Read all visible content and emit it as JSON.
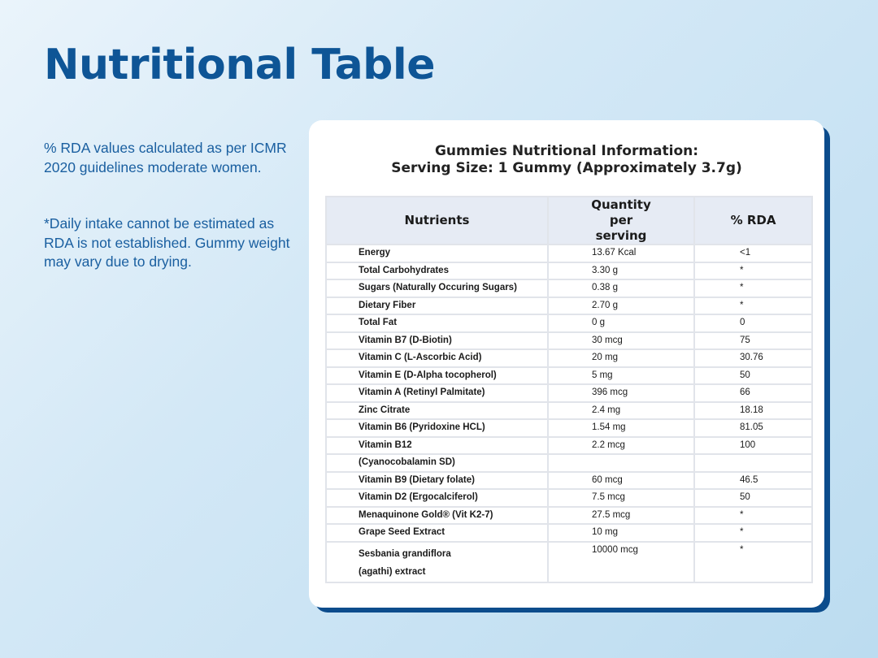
{
  "page": {
    "title": "Nutritional Table",
    "note1": "% RDA values calculated as per ICMR 2020 guidelines moderate women.",
    "note2": "*Daily intake cannot be estimated as RDA is not established. Gummy weight may vary due to drying."
  },
  "card": {
    "title_line1": "Gummies Nutritional Information:",
    "title_line2": "Serving Size: 1 Gummy (Approximately 3.7g)"
  },
  "table": {
    "headers": [
      "Nutrients",
      "Quantity per serving",
      "% RDA"
    ],
    "rows": [
      [
        "Energy",
        "13.67 Kcal",
        "<1"
      ],
      [
        "Total Carbohydrates",
        "3.30 g",
        "*"
      ],
      [
        "Sugars (Naturally Occuring Sugars)",
        "0.38 g",
        "*"
      ],
      [
        "Dietary Fiber",
        "2.70 g",
        "*"
      ],
      [
        "Total Fat",
        "0 g",
        "0"
      ],
      [
        "Vitamin B7 (D-Biotin)",
        "30 mcg",
        "75"
      ],
      [
        "Vitamin C (L-Ascorbic Acid)",
        "20 mg",
        "30.76"
      ],
      [
        "Vitamin E (D-Alpha tocopherol)",
        "5 mg",
        "50"
      ],
      [
        "Vitamin A (Retinyl Palmitate)",
        "396 mcg",
        "66"
      ],
      [
        "Zinc Citrate",
        "2.4 mg",
        "18.18"
      ],
      [
        "Vitamin B6 (Pyridoxine HCL)",
        "1.54 mg",
        "81.05"
      ],
      [
        "Vitamin B12",
        "2.2 mcg",
        "100"
      ],
      [
        "(Cyanocobalamin SD)",
        "",
        ""
      ],
      [
        "Vitamin B9 (Dietary folate)",
        "60 mcg",
        "46.5"
      ],
      [
        "Vitamin D2 (Ergocalciferol)",
        "7.5 mcg",
        "50"
      ],
      [
        "Menaquinone Gold® (Vit K2-7)",
        "27.5 mcg",
        "*"
      ],
      [
        "Grape Seed Extract",
        "10 mg",
        "*"
      ],
      [
        "Sesbania grandiflora (agathi) extract",
        "10000 mcg",
        "*"
      ]
    ]
  },
  "colors": {
    "title": "#0e5596",
    "card_shadow": "#0c4c8c",
    "header_bg": "#e6ebf4"
  }
}
